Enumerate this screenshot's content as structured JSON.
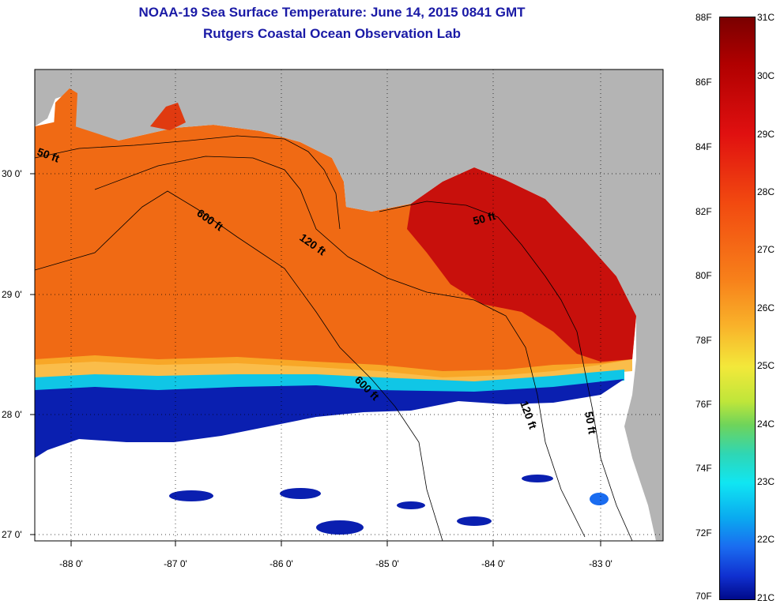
{
  "header": {
    "title": "NOAA-19 Sea Surface Temperature:  June 14, 2015 0841 GMT",
    "subtitle": "Rutgers Coastal Ocean Observation Lab"
  },
  "map": {
    "latitude_labels": [
      "30 0'",
      "29 0'",
      "28 0'",
      "27 0'"
    ],
    "longitude_labels": [
      "-88 0'",
      "-87 0'",
      "-86 0'",
      "-85 0'",
      "-84 0'",
      "-83 0'"
    ],
    "contour_labels": [
      "50 ft",
      "600 ft",
      "120 ft",
      "50 ft",
      "600 ft",
      "120 ft",
      "50 ft"
    ]
  },
  "colorbar": {
    "fahrenheit_labels": [
      "88F",
      "86F",
      "84F",
      "82F",
      "80F",
      "78F",
      "76F",
      "74F",
      "72F",
      "70F"
    ],
    "celsius_labels": [
      "31C",
      "30C",
      "29C",
      "28C",
      "27C",
      "26C",
      "25C",
      "24C",
      "23C",
      "22C",
      "21C"
    ]
  },
  "colors": {
    "land": "#b4b4b4",
    "warm_water": "#f06a14",
    "hot_water": "#c8100c",
    "cold_water": "#0a1fb0",
    "cloud": "#ffffff",
    "title": "#1a1aa6"
  }
}
